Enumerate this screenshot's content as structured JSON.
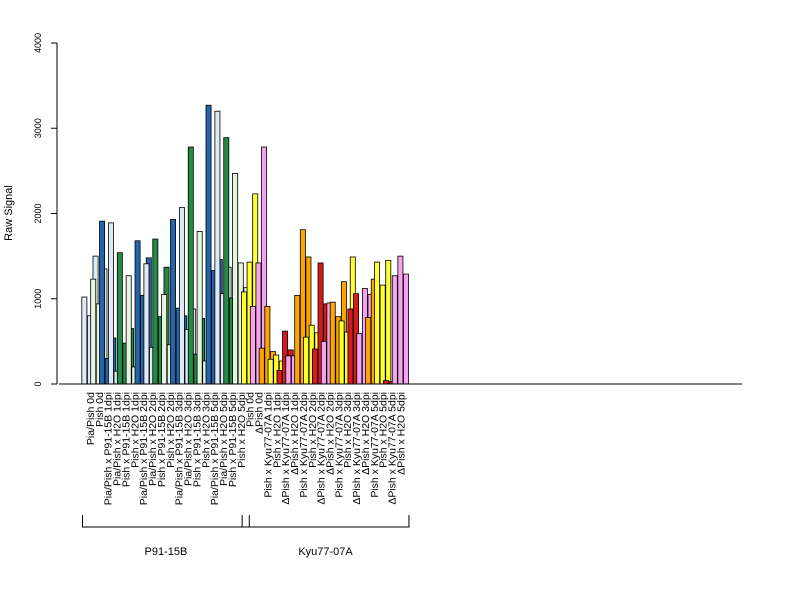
{
  "chart_data": {
    "type": "bar",
    "ylabel": "Raw Signal",
    "ylim": [
      0,
      4000
    ],
    "yticks": [
      "0",
      "1000",
      "2000",
      "3000",
      "4000"
    ],
    "groups": [
      {
        "label": "P91-15B"
      },
      {
        "label": "Kyu77-07A"
      }
    ],
    "categories": [
      {
        "label": "Pia/Pish 0d",
        "color": "#deebf7",
        "values": [
          1020,
          800,
          1500
        ]
      },
      {
        "label": "Pish 0d",
        "color": "#e5f5e0",
        "values": [
          1230,
          940,
          1350
        ]
      },
      {
        "label": "Pia/Pish x P91-15B 1dpi",
        "color": "#2166ac",
        "values": [
          1910,
          300,
          540
        ]
      },
      {
        "label": "Pia/Pish x H2O 1dpi",
        "color": "#deebf7",
        "values": [
          1890,
          150,
          240
        ]
      },
      {
        "label": "Pish x P91-15B 1dpi",
        "color": "#238b45",
        "values": [
          1540,
          480,
          650
        ]
      },
      {
        "label": "Pish x H2O 1dpi",
        "color": "#e5f5e0",
        "values": [
          1270,
          200,
          310
        ]
      },
      {
        "label": "Pia/Pish x P91-15B 2dpi",
        "color": "#2166ac",
        "values": [
          1680,
          1040,
          1480
        ]
      },
      {
        "label": "Pia/Pish x H2O 2dpi",
        "color": "#deebf7",
        "values": [
          1410,
          430,
          430
        ]
      },
      {
        "label": "Pish x P91-15B 2dpi",
        "color": "#238b45",
        "values": [
          1700,
          790,
          1370
        ]
      },
      {
        "label": "Pish x H2O 2dpi",
        "color": "#e5f5e0",
        "values": [
          1050,
          460,
          420
        ]
      },
      {
        "label": "Pia/Pish x P91-15B 3dpi",
        "color": "#2166ac",
        "values": [
          1930,
          890,
          800
        ]
      },
      {
        "label": "Pia/Pish x H2O 3dpi",
        "color": "#deebf7",
        "values": [
          2070,
          640,
          880
        ]
      },
      {
        "label": "Pish x P91-15B 3dpi",
        "color": "#238b45",
        "values": [
          2780,
          350,
          770
        ]
      },
      {
        "label": "Pish x H2O 3dpi",
        "color": "#e5f5e0",
        "values": [
          1790,
          270,
          790
        ]
      },
      {
        "label": "Pia/Pish x P91-15B 5dpi",
        "color": "#2166ac",
        "values": [
          3270,
          1330,
          1460
        ]
      },
      {
        "label": "Pia/Pish x H2O 5dpi",
        "color": "#deebf7",
        "values": [
          3200,
          1060,
          1370
        ]
      },
      {
        "label": "Pish x P91-15B 5dpi",
        "color": "#238b45",
        "values": [
          2890,
          1010,
          1340
        ]
      },
      {
        "label": "Pish x H2O 5dpi",
        "color": "#e5f5e0",
        "values": [
          2470,
          1420,
          1130
        ]
      },
      {
        "label": "Pish 0d",
        "color": "#ffff33",
        "values": [
          1080,
          1430,
          2230
        ]
      },
      {
        "label": "ΔPish 0d",
        "color": "#f5a3f0",
        "values": [
          910,
          1420,
          2780
        ]
      },
      {
        "label": "Pish x Kyu77-07A 1dpi",
        "color": "#ffa500",
        "values": [
          420,
          910,
          380
        ]
      },
      {
        "label": "Pish x H2O 1dpi",
        "color": "#ffff33",
        "values": [
          290,
          340,
          270
        ]
      },
      {
        "label": "ΔPish x Kyu77-07A 1dpi",
        "color": "#d7191c",
        "values": [
          160,
          620,
          400
        ]
      },
      {
        "label": "ΔPish x H2O 1dpi",
        "color": "#f5a3f0",
        "values": [
          330,
          330,
          330
        ]
      },
      {
        "label": "Pish x Kyu77-07A 2dpi",
        "color": "#ffa500",
        "values": [
          1040,
          1810,
          1490
        ]
      },
      {
        "label": "Pish x H2O 2dpi",
        "color": "#ffff33",
        "values": [
          550,
          690,
          600
        ]
      },
      {
        "label": "ΔPish x Kyu77-07A 2dpi",
        "color": "#d7191c",
        "values": [
          410,
          1420,
          940
        ]
      },
      {
        "label": "ΔPish x H2O 2dpi",
        "color": "#f5a3f0",
        "values": [
          500,
          950,
          700
        ]
      },
      {
        "label": "Pish x Kyu77-07A 3dpi",
        "color": "#ffa500",
        "values": [
          960,
          790,
          1200
        ]
      },
      {
        "label": "Pish x H2O 3dpi",
        "color": "#ffff33",
        "values": [
          740,
          610,
          1490
        ]
      },
      {
        "label": "ΔPish x Kyu77-07A 3dpi",
        "color": "#d7191c",
        "values": [
          880,
          1060,
          580
        ]
      },
      {
        "label": "ΔPish x H2O 3dpi",
        "color": "#f5a3f0",
        "values": [
          590,
          1120,
          1050
        ]
      },
      {
        "label": "Pish x Kyu77-07A 5dpi",
        "color": "#ffa500",
        "values": [
          780,
          1230,
          1080
        ]
      },
      {
        "label": "Pish x H2O 5dpi",
        "color": "#ffff33",
        "values": [
          1430,
          1160,
          1450
        ]
      },
      {
        "label": "ΔPish x Kyu77-07A 5dpi",
        "color": "#d7191c",
        "values": [
          40,
          30,
          90
        ]
      },
      {
        "label": "ΔPish x H2O 5dpi",
        "color": "#f5a3f0",
        "values": [
          1270,
          1500,
          1290
        ]
      }
    ]
  }
}
